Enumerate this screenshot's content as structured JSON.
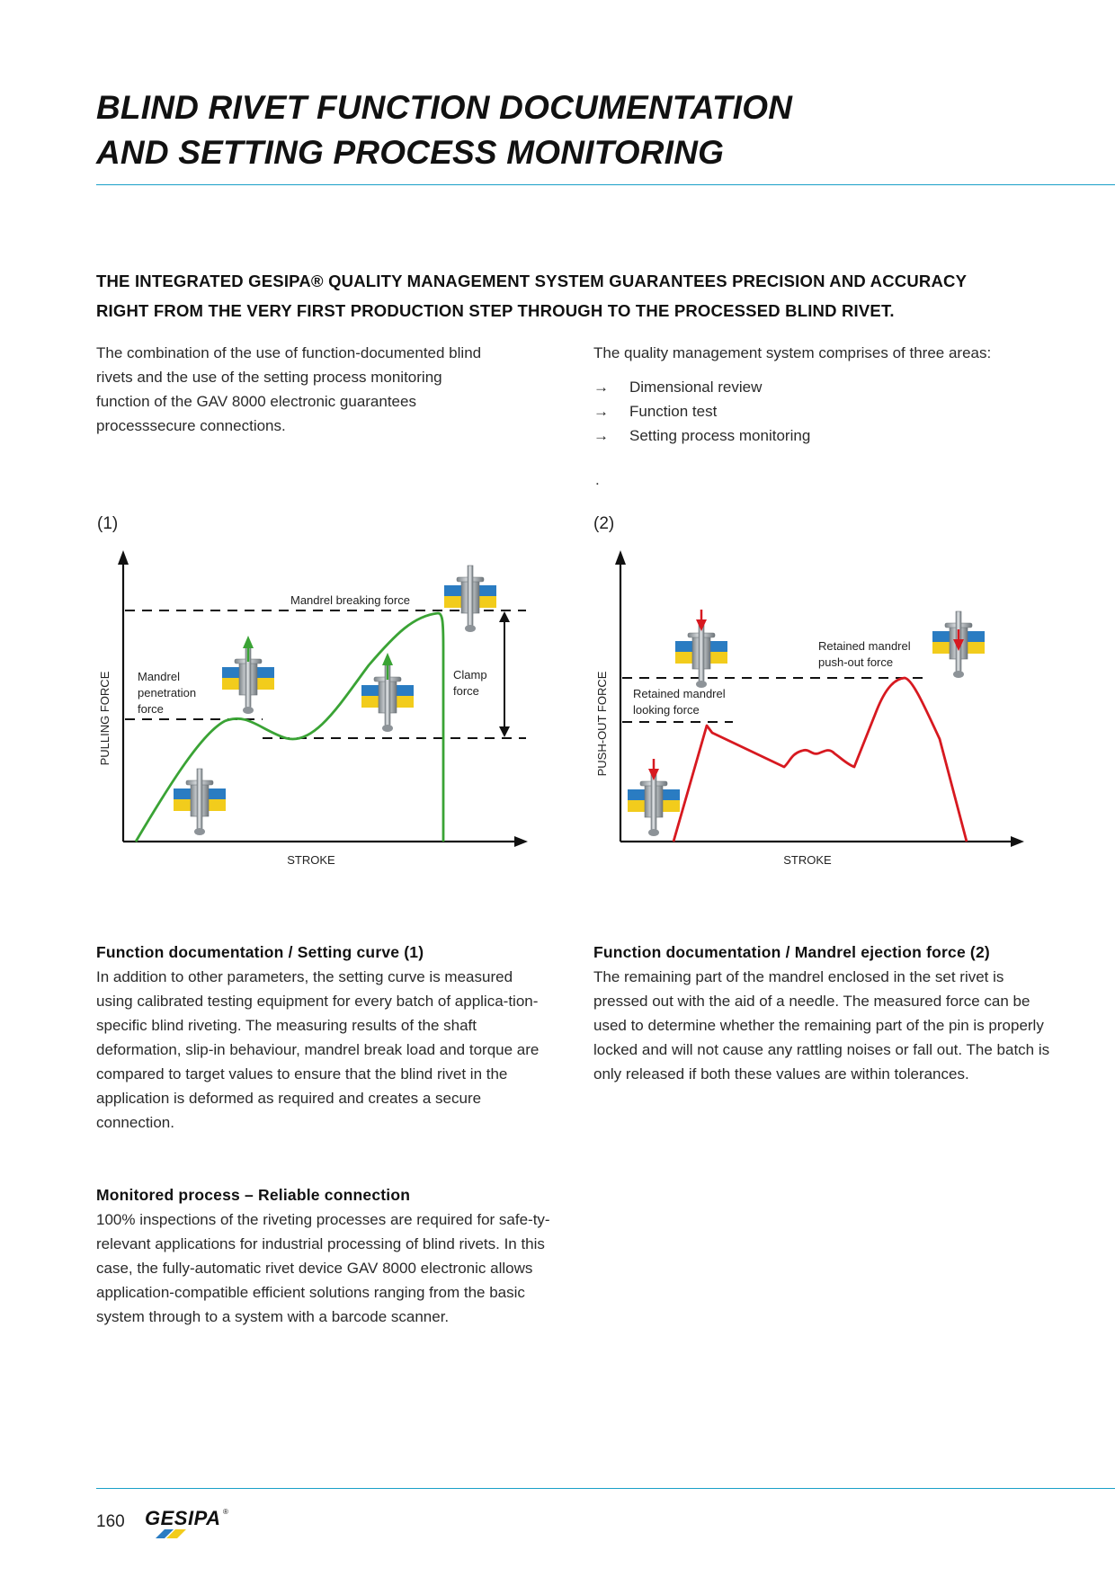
{
  "page": {
    "title_line1": "BLIND RIVET FUNCTION DOCUMENTATION",
    "title_line2": "AND SETTING PROCESS MONITORING",
    "lead": "THE INTEGRATED GESIPA® QUALITY MANAGEMENT SYSTEM GUARANTEES PRECISION AND ACCURACY RIGHT FROM THE VERY FIRST PRODUCTION STEP THROUGH TO THE PROCESSED BLIND RIVET.",
    "intro_left": "The combination of the use of function-documented blind rivets and the use of the setting process monitoring function of the GAV 8000 electronic guarantees processsecure connections.",
    "intro_right": "The quality management system comprises of three areas:",
    "bullets": [
      "Dimensional review",
      "Function test",
      "Setting process monitoring"
    ],
    "stray_mark": ".",
    "page_number": "160",
    "brand": "GESIPA",
    "brand_mark": "®"
  },
  "icons": {
    "bullet": "arrow-right-icon",
    "rivet": "blind-rivet-icon",
    "force_up": "green-arrow-up-icon",
    "force_down": "red-arrow-down-icon"
  },
  "colors": {
    "accent_rule": "#1aa0c8",
    "setting_curve": "#3aa335",
    "ejection_curve": "#d71920",
    "sheet_blue": "#2a7cc2",
    "sheet_yellow": "#f2cc1c"
  },
  "figure1": {
    "label": "(1)",
    "y_axis": "PULLING FORCE",
    "x_axis": "STROKE",
    "annotations": {
      "breaking": "Mandrel breaking force",
      "penetration": [
        "Mandrel",
        "penetration",
        "force"
      ],
      "clamp": [
        "Clamp",
        "force"
      ]
    }
  },
  "figure2": {
    "label": "(2)",
    "y_axis": "PUSH-OUT FORCE",
    "x_axis": "STROKE",
    "annotations": {
      "pushout": [
        "Retained mandrel",
        "push-out force"
      ],
      "locking": [
        "Retained mandrel",
        "looking force"
      ]
    }
  },
  "sections": {
    "setting_title": "Function documentation / Setting curve (1)",
    "setting_body": "In addition to other parameters, the setting curve is measured using calibrated testing equipment for every batch of applica-tion-specific blind riveting. The measuring results of the shaft deformation, slip-in behaviour, mandrel break load and torque are compared to target values to ensure that the blind rivet in the application is deformed as required and creates a secure connection.",
    "ejection_title": "Function documentation / Mandrel ejection force (2)",
    "ejection_body": "The remaining part of the mandrel enclosed in the set rivet is pressed out with the aid of a needle. The measured force can be used to determine whether the remaining part of the pin is properly locked and will not cause any rattling noises or fall out. The batch is only released if both these values are within tolerances.",
    "monitored_title": "Monitored process – Reliable connection",
    "monitored_body": "100% inspections of the riveting processes are required for safe-ty-relevant applications for industrial processing of blind rivets. In this case, the fully-automatic rivet device GAV 8000 electronic allows application-compatible efficient solutions ranging from the basic system through to a system with a barcode scanner."
  }
}
